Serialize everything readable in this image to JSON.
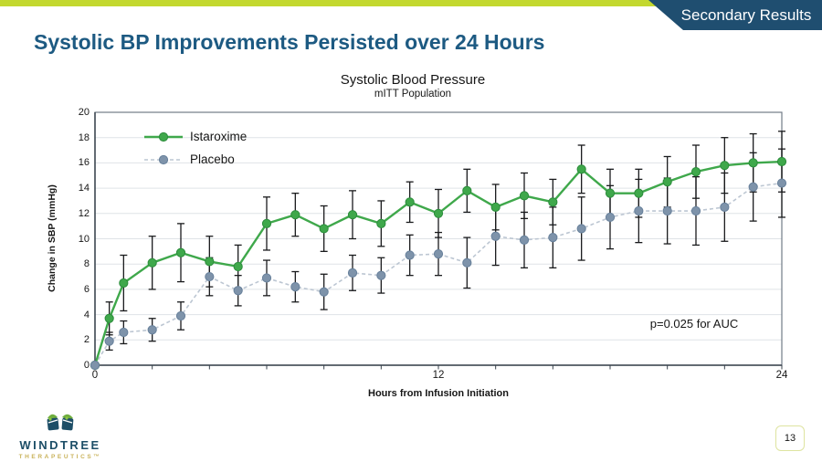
{
  "slide": {
    "badge": "Secondary Results",
    "title": "Systolic BP Improvements Persisted over 24 Hours",
    "page_number": "13",
    "logo": {
      "name": "WINDTREE",
      "sub": "THERAPEUTICS™"
    }
  },
  "colors": {
    "accent_green": "#c3d82f",
    "banner_blue": "#1f4e70",
    "title_blue": "#1d5a82",
    "istaroxime_green": "#3fa84b",
    "placebo_gray_blue": "#7e93aa",
    "error_bar_black": "#191a1c"
  },
  "chart_data": {
    "type": "line",
    "title": "Systolic Blood Pressure",
    "subtitle": "mITT Population",
    "xlabel": "Hours from Infusion Initiation",
    "ylabel": "Change in SBP (mmHg)",
    "annotation": "p=0.025 for AUC",
    "legend_position": "top-left-inside",
    "grid": true,
    "xlim": [
      0,
      24
    ],
    "ylim": [
      0,
      20
    ],
    "y_tick_step": 2,
    "x_minor_tick_step": 2,
    "x_ticks_labeled": [
      0,
      12,
      24
    ],
    "x": [
      0,
      0.5,
      1,
      2,
      3,
      4,
      5,
      6,
      7,
      8,
      9,
      10,
      11,
      12,
      13,
      14,
      15,
      16,
      17,
      18,
      19,
      20,
      21,
      22,
      23,
      24
    ],
    "series": [
      {
        "name": "Istaroxime",
        "style": "solid",
        "color": "#3fa84b",
        "marker_edge": "#2c8c3c",
        "values": [
          0,
          3.7,
          6.5,
          8.1,
          8.9,
          8.2,
          7.8,
          11.2,
          11.9,
          10.8,
          11.9,
          11.2,
          12.9,
          12.0,
          13.8,
          12.5,
          13.4,
          12.9,
          15.5,
          13.6,
          13.6,
          14.5,
          15.3,
          15.8,
          16.0,
          16.1
        ],
        "errors": [
          0,
          1.3,
          2.2,
          2.1,
          2.3,
          2.0,
          1.7,
          2.1,
          1.7,
          1.8,
          1.9,
          1.8,
          1.6,
          1.9,
          1.7,
          1.8,
          1.8,
          1.8,
          1.9,
          1.9,
          1.9,
          2.0,
          2.1,
          2.2,
          2.3,
          2.4
        ]
      },
      {
        "name": "Placebo",
        "style": "dashed",
        "color": "#7e93aa",
        "marker_edge": "#67809b",
        "line_color": "#bcc6d2",
        "values": [
          0,
          1.9,
          2.6,
          2.8,
          3.9,
          7.0,
          5.9,
          6.9,
          6.2,
          5.8,
          7.3,
          7.1,
          8.7,
          8.8,
          8.1,
          10.2,
          9.9,
          10.1,
          10.8,
          11.7,
          12.2,
          12.2,
          12.2,
          12.5,
          14.1,
          14.4
        ],
        "errors": [
          0,
          0.7,
          0.9,
          0.9,
          1.1,
          1.5,
          1.2,
          1.4,
          1.2,
          1.4,
          1.4,
          1.4,
          1.6,
          1.7,
          2.0,
          2.3,
          2.2,
          2.4,
          2.5,
          2.5,
          2.5,
          2.6,
          2.7,
          2.7,
          2.7,
          2.7
        ]
      }
    ]
  }
}
